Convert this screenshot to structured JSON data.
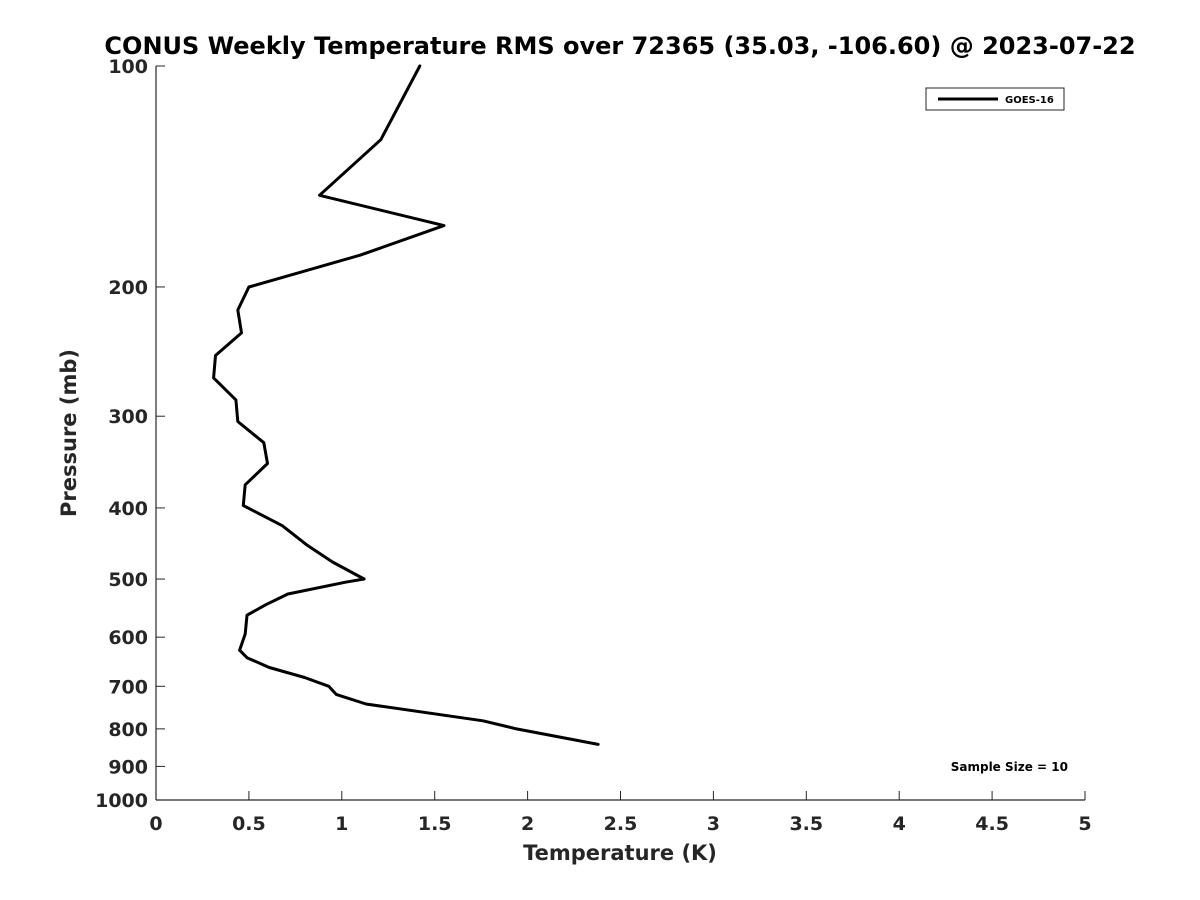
{
  "chart_data": {
    "type": "line",
    "title": "CONUS Weekly Temperature RMS over 72365 (35.03, -106.60) @ 2023-07-22",
    "xlabel": "Temperature (K)",
    "ylabel": "Pressure (mb)",
    "xlim": [
      0,
      5
    ],
    "ylim": [
      100,
      1000
    ],
    "y_scale": "log",
    "y_reversed": true,
    "grid": false,
    "legend_position": "top-right",
    "xticks": [
      0,
      0.5,
      1,
      1.5,
      2,
      2.5,
      3,
      3.5,
      4,
      4.5,
      5
    ],
    "xtick_labels": [
      "0",
      "0.5",
      "1",
      "1.5",
      "2",
      "2.5",
      "3",
      "3.5",
      "4",
      "4.5",
      "5"
    ],
    "yticks": [
      100,
      200,
      300,
      400,
      500,
      600,
      700,
      800,
      900,
      1000
    ],
    "ytick_labels": [
      "100",
      "200",
      "300",
      "400",
      "500",
      "600",
      "700",
      "800",
      "900",
      "1000"
    ],
    "series": [
      {
        "name": "GOES-16",
        "color": "#000000",
        "points": [
          {
            "x": 1.42,
            "y": 100
          },
          {
            "x": 1.21,
            "y": 126
          },
          {
            "x": 0.88,
            "y": 150
          },
          {
            "x": 1.55,
            "y": 165
          },
          {
            "x": 1.1,
            "y": 181
          },
          {
            "x": 0.5,
            "y": 200
          },
          {
            "x": 0.44,
            "y": 215
          },
          {
            "x": 0.46,
            "y": 231
          },
          {
            "x": 0.32,
            "y": 248
          },
          {
            "x": 0.31,
            "y": 266
          },
          {
            "x": 0.43,
            "y": 285
          },
          {
            "x": 0.44,
            "y": 305
          },
          {
            "x": 0.58,
            "y": 326
          },
          {
            "x": 0.6,
            "y": 348
          },
          {
            "x": 0.48,
            "y": 372
          },
          {
            "x": 0.47,
            "y": 397
          },
          {
            "x": 0.68,
            "y": 423
          },
          {
            "x": 0.81,
            "y": 449
          },
          {
            "x": 0.95,
            "y": 474
          },
          {
            "x": 1.12,
            "y": 500
          },
          {
            "x": 1.02,
            "y": 505
          },
          {
            "x": 0.71,
            "y": 524
          },
          {
            "x": 0.59,
            "y": 542
          },
          {
            "x": 0.49,
            "y": 560
          },
          {
            "x": 0.48,
            "y": 594
          },
          {
            "x": 0.45,
            "y": 625
          },
          {
            "x": 0.49,
            "y": 640
          },
          {
            "x": 0.61,
            "y": 660
          },
          {
            "x": 0.8,
            "y": 681
          },
          {
            "x": 0.93,
            "y": 700
          },
          {
            "x": 0.97,
            "y": 718
          },
          {
            "x": 1.13,
            "y": 740
          },
          {
            "x": 1.76,
            "y": 780
          },
          {
            "x": 1.94,
            "y": 800
          },
          {
            "x": 2.38,
            "y": 840
          }
        ]
      }
    ],
    "annotations": [
      {
        "text": "Sample Size = 10",
        "position": "bottom-right"
      }
    ]
  }
}
